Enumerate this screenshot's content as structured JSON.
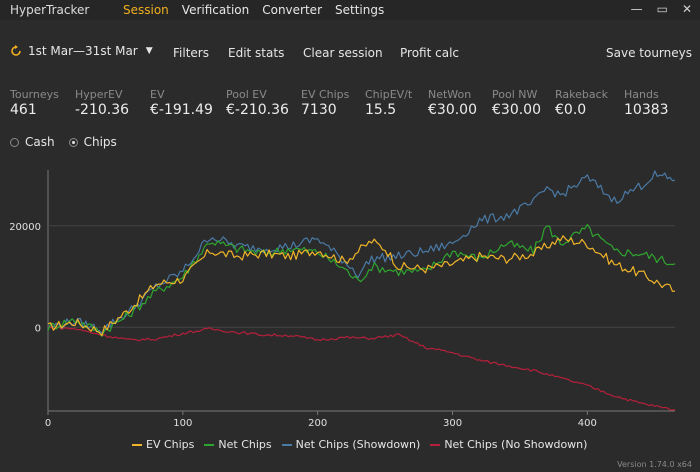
{
  "app": {
    "title": "HyperTracker"
  },
  "menu": [
    {
      "label": "Session",
      "active": true
    },
    {
      "label": "Verification",
      "active": false
    },
    {
      "label": "Converter",
      "active": false
    },
    {
      "label": "Settings",
      "active": false
    }
  ],
  "window_controls": {
    "min": "—",
    "restore": "▭",
    "close": "✕"
  },
  "toolbar": {
    "date_range": "1st Mar—31st Mar",
    "filters": "Filters",
    "edit_stats": "Edit stats",
    "clear_session": "Clear session",
    "profit_calc": "Profit calc",
    "save_tourneys": "Save tourneys"
  },
  "stats": [
    {
      "label": "Tourneys",
      "value": "461"
    },
    {
      "label": "HyperEV",
      "value": "-210.36"
    },
    {
      "label": "EV",
      "value": "€-191.49"
    },
    {
      "label": "Pool EV",
      "value": "€-210.36"
    },
    {
      "label": "EV Chips",
      "value": "7130"
    },
    {
      "label": "ChipEV/t",
      "value": "15.5"
    },
    {
      "label": "NetWon",
      "value": "€30.00"
    },
    {
      "label": "Pool NW",
      "value": "€30.00"
    },
    {
      "label": "Rakeback",
      "value": "€0.0"
    },
    {
      "label": "Hands",
      "value": "10383"
    }
  ],
  "mode": {
    "cash": "Cash",
    "chips": "Chips",
    "selected": "chips"
  },
  "version": "Version 1.74.0 x64",
  "colors": {
    "ev": "#f0b429",
    "net": "#2fa52f",
    "showdown": "#4a7aa6",
    "noshowdown": "#b5203a",
    "accent": "#f0b020",
    "grid": "#444444"
  },
  "chart_data": {
    "type": "line",
    "xlim": [
      0,
      465
    ],
    "ylim": [
      -16500,
      31000
    ],
    "xticks": [
      0,
      100,
      200,
      300,
      400
    ],
    "yticks": [
      0,
      20000
    ],
    "grid": "horizontal",
    "legend_position": "bottom",
    "series": [
      {
        "name": "EV Chips",
        "color": "#f0b429",
        "points": [
          [
            0,
            0
          ],
          [
            20,
            1000
          ],
          [
            40,
            -800
          ],
          [
            60,
            3500
          ],
          [
            80,
            8500
          ],
          [
            100,
            9500
          ],
          [
            120,
            15000
          ],
          [
            140,
            14000
          ],
          [
            160,
            14500
          ],
          [
            180,
            14000
          ],
          [
            200,
            15200
          ],
          [
            220,
            13000
          ],
          [
            240,
            17000
          ],
          [
            250,
            15500
          ],
          [
            260,
            12000
          ],
          [
            280,
            11500
          ],
          [
            300,
            12500
          ],
          [
            320,
            14000
          ],
          [
            340,
            13500
          ],
          [
            360,
            14500
          ],
          [
            380,
            17500
          ],
          [
            400,
            16500
          ],
          [
            420,
            12500
          ],
          [
            440,
            10500
          ],
          [
            465,
            7130
          ]
        ]
      },
      {
        "name": "Net Chips",
        "color": "#2fa52f",
        "points": [
          [
            0,
            0
          ],
          [
            20,
            1500
          ],
          [
            40,
            -1000
          ],
          [
            60,
            2500
          ],
          [
            80,
            7000
          ],
          [
            100,
            10000
          ],
          [
            120,
            17000
          ],
          [
            140,
            15500
          ],
          [
            160,
            14500
          ],
          [
            180,
            15500
          ],
          [
            200,
            14800
          ],
          [
            220,
            11500
          ],
          [
            230,
            9000
          ],
          [
            240,
            12000
          ],
          [
            260,
            11000
          ],
          [
            280,
            11000
          ],
          [
            300,
            15000
          ],
          [
            320,
            13500
          ],
          [
            340,
            16500
          ],
          [
            360,
            15000
          ],
          [
            370,
            20000
          ],
          [
            380,
            16500
          ],
          [
            400,
            19500
          ],
          [
            420,
            15000
          ],
          [
            440,
            14500
          ],
          [
            465,
            12500
          ]
        ]
      },
      {
        "name": "Net Chips (Showdown)",
        "color": "#4a7aa6",
        "points": [
          [
            0,
            0
          ],
          [
            20,
            1200
          ],
          [
            40,
            -500
          ],
          [
            60,
            3000
          ],
          [
            80,
            8000
          ],
          [
            100,
            11000
          ],
          [
            120,
            18000
          ],
          [
            140,
            16000
          ],
          [
            160,
            15500
          ],
          [
            180,
            16000
          ],
          [
            200,
            17500
          ],
          [
            220,
            13000
          ],
          [
            230,
            10500
          ],
          [
            240,
            13500
          ],
          [
            260,
            14000
          ],
          [
            280,
            15000
          ],
          [
            300,
            16500
          ],
          [
            320,
            21000
          ],
          [
            340,
            22000
          ],
          [
            360,
            24500
          ],
          [
            370,
            27500
          ],
          [
            380,
            26000
          ],
          [
            400,
            29500
          ],
          [
            420,
            25000
          ],
          [
            440,
            28000
          ],
          [
            450,
            30000
          ],
          [
            465,
            29000
          ]
        ]
      },
      {
        "name": "Net Chips (No Showdown)",
        "color": "#b5203a",
        "points": [
          [
            0,
            0
          ],
          [
            20,
            -300
          ],
          [
            40,
            -1500
          ],
          [
            60,
            -2500
          ],
          [
            80,
            -2300
          ],
          [
            100,
            -1200
          ],
          [
            120,
            -300
          ],
          [
            140,
            -1000
          ],
          [
            160,
            -1500
          ],
          [
            180,
            -1600
          ],
          [
            200,
            -2500
          ],
          [
            220,
            -2000
          ],
          [
            240,
            -2200
          ],
          [
            260,
            -1500
          ],
          [
            280,
            -4000
          ],
          [
            300,
            -5000
          ],
          [
            320,
            -6500
          ],
          [
            340,
            -7500
          ],
          [
            360,
            -8500
          ],
          [
            380,
            -10000
          ],
          [
            400,
            -11500
          ],
          [
            420,
            -13500
          ],
          [
            440,
            -15000
          ],
          [
            465,
            -16300
          ]
        ]
      }
    ]
  }
}
